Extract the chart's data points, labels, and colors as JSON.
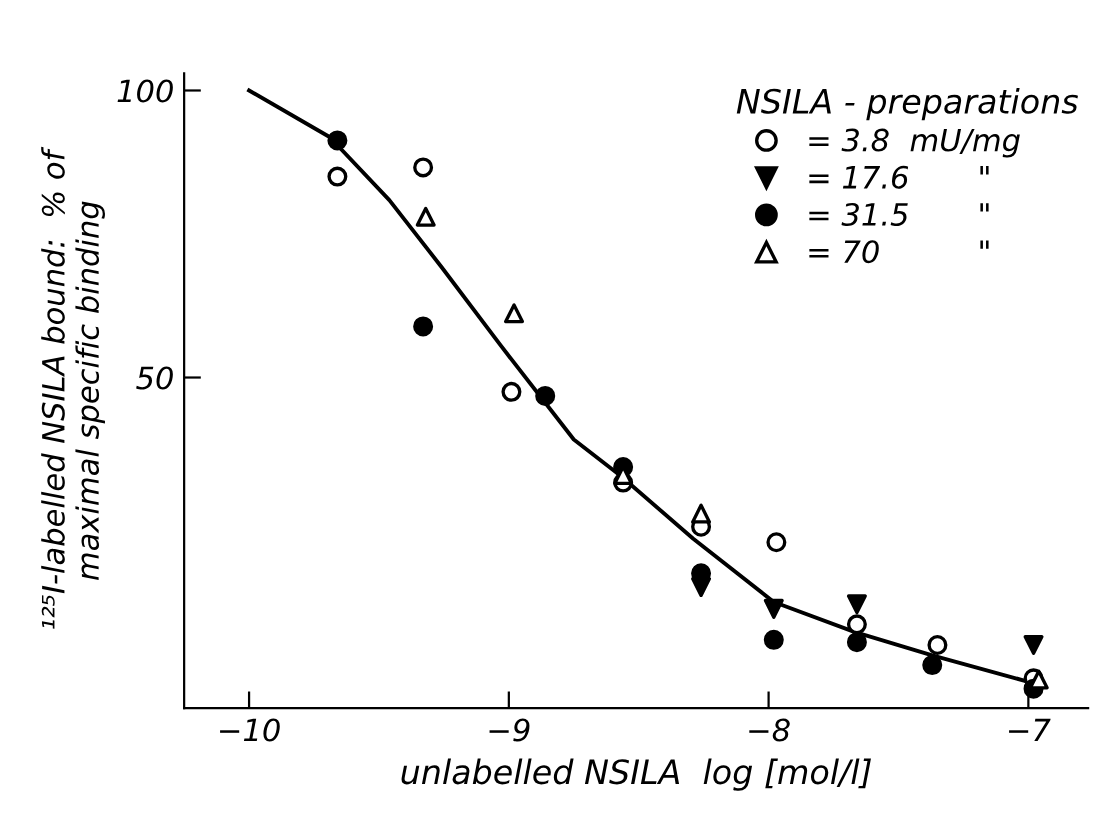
{
  "chart_data": {
    "type": "scatter",
    "xlabel": "unlabelled NSILA  log [mol/l]",
    "ylabel": "¹²⁵I-labelled NSILA bound:  % of\nmaximal specific binding",
    "legend_title": "NSILA - preparations",
    "legend": "top right",
    "grid": false,
    "xlim": [
      -10.25,
      -6.77
    ],
    "ylim": [
      -7.6,
      103
    ],
    "xticks": [
      {
        "value": -10,
        "label": "−10"
      },
      {
        "value": -9,
        "label": "−9"
      },
      {
        "value": -8,
        "label": "−8"
      },
      {
        "value": -7,
        "label": "−7"
      }
    ],
    "yticks": [
      50,
      100
    ],
    "series": [
      {
        "name": "= 3.8  mU/mg",
        "color": "#ffffff",
        "marker": "circle",
        "x": [
          -9.66,
          -9.33,
          -8.99,
          -8.56,
          -8.26,
          -7.97,
          -7.66,
          -7.35,
          -6.98
        ],
        "values": [
          85.0,
          86.6,
          47.5,
          31.7,
          24.0,
          21.3,
          7.0,
          3.4,
          -2.4
        ]
      },
      {
        "name": "= 17.6       \"",
        "color": "#000000",
        "marker": "triangle_down",
        "x": [
          -8.26,
          -7.98,
          -7.66,
          -6.98
        ],
        "values": [
          13.5,
          9.7,
          10.5,
          3.4
        ]
      },
      {
        "name": "= 31.5       \"",
        "color": "#000000",
        "marker": "circle",
        "x": [
          -9.66,
          -9.33,
          -8.86,
          -8.56,
          -8.26,
          -7.98,
          -7.66,
          -7.37,
          -6.98
        ],
        "values": [
          91.3,
          58.9,
          46.8,
          34.4,
          15.9,
          4.3,
          3.9,
          -0.1,
          -4.2
        ]
      },
      {
        "name": "= 70          \"",
        "color": "#ffffff",
        "marker": "triangle",
        "x": [
          -9.32,
          -8.98,
          -8.56,
          -8.26,
          -6.96
        ],
        "values": [
          78.0,
          61.2,
          33.0,
          26.3,
          -2.6
        ]
      },
      {
        "type": "line",
        "color": "#000000",
        "marker": "none",
        "x": [
          -10.0,
          -9.69,
          -9.46,
          -9.26,
          -9.03,
          -8.75,
          -8.57,
          -8.29,
          -7.98,
          -7.67,
          -7.37,
          -7.0
        ],
        "values": [
          100,
          91.9,
          80.9,
          69.3,
          55.5,
          39.2,
          32.9,
          21.9,
          10.9,
          5.7,
          1.6,
          -3.0
        ]
      }
    ]
  }
}
